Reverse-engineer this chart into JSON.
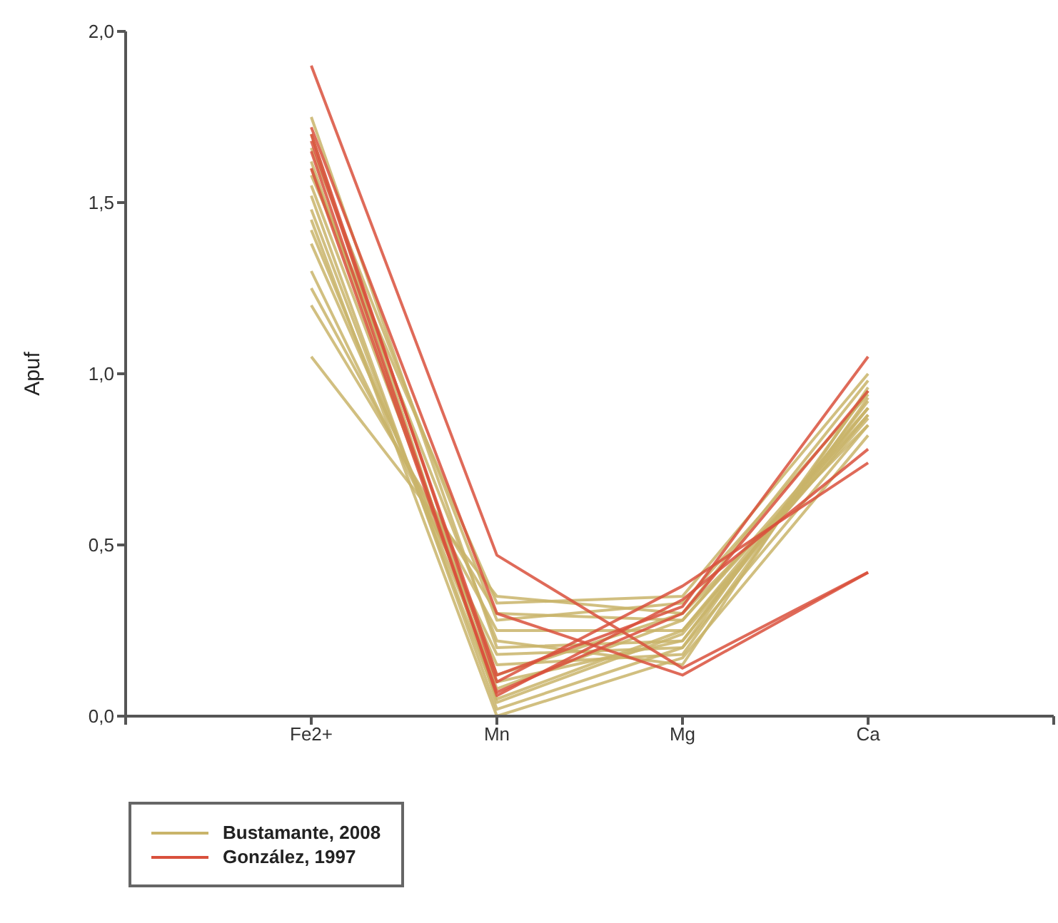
{
  "chart_data": {
    "type": "line",
    "ylabel": "Apuf",
    "categories": [
      null,
      "Fe2+",
      "Mn",
      "Mg",
      "Ca",
      null
    ],
    "ylim": [
      0,
      2
    ],
    "yticks": [
      {
        "value": 0,
        "label": "0,0"
      },
      {
        "value": 0.5,
        "label": "0,5"
      },
      {
        "value": 1,
        "label": "1,0"
      },
      {
        "value": 1.5,
        "label": "1,5"
      },
      {
        "value": 2,
        "label": "2,0"
      }
    ],
    "legend": "bottom left",
    "grid": false,
    "marker": "none",
    "line_style": "solid",
    "series": [
      {
        "name": "Bustamante, 2008",
        "color": "#c9b46a",
        "values": [
          null,
          1.75,
          0.2,
          0.22,
          0.92,
          null
        ]
      },
      {
        "color": "#c9b46a",
        "values": [
          null,
          1.05,
          0.35,
          0.3,
          0.85,
          null
        ]
      },
      {
        "color": "#c9b46a",
        "values": [
          null,
          1.2,
          0.3,
          0.28,
          0.88,
          null
        ]
      },
      {
        "color": "#c9b46a",
        "values": [
          null,
          1.25,
          0.25,
          0.25,
          0.9,
          null
        ]
      },
      {
        "color": "#c9b46a",
        "values": [
          null,
          1.3,
          0.18,
          0.2,
          0.95,
          null
        ]
      },
      {
        "color": "#c9b46a",
        "values": [
          null,
          1.38,
          0.15,
          0.18,
          0.93,
          null
        ]
      },
      {
        "color": "#c9b46a",
        "values": [
          null,
          1.42,
          0.1,
          0.22,
          0.9,
          null
        ]
      },
      {
        "color": "#c9b46a",
        "values": [
          null,
          1.48,
          0.05,
          0.25,
          0.87,
          null
        ]
      },
      {
        "color": "#c9b46a",
        "values": [
          null,
          1.52,
          0.02,
          0.2,
          0.85,
          null
        ]
      },
      {
        "color": "#c9b46a",
        "values": [
          null,
          1.55,
          0.12,
          0.3,
          0.98,
          null
        ]
      },
      {
        "color": "#c9b46a",
        "values": [
          null,
          1.6,
          0.22,
          0.15,
          0.96,
          null
        ]
      },
      {
        "color": "#c9b46a",
        "values": [
          null,
          1.62,
          0.08,
          0.28,
          0.9,
          null
        ]
      },
      {
        "color": "#c9b46a",
        "values": [
          null,
          1.66,
          0.28,
          0.33,
          0.94,
          null
        ]
      },
      {
        "color": "#c9b46a",
        "values": [
          null,
          1.7,
          0.04,
          0.24,
          0.88,
          null
        ]
      },
      {
        "color": "#c9b46a",
        "values": [
          null,
          1.58,
          0.33,
          0.35,
          1.0,
          null
        ]
      },
      {
        "color": "#c9b46a",
        "values": [
          null,
          1.45,
          0.0,
          0.17,
          0.82,
          null
        ]
      },
      {
        "name": "González, 1997",
        "color": "#d9503c",
        "values": [
          null,
          1.9,
          0.47,
          0.14,
          0.42,
          null
        ]
      },
      {
        "color": "#d9503c",
        "values": [
          null,
          1.72,
          0.3,
          0.12,
          0.42,
          null
        ]
      },
      {
        "color": "#d9503c",
        "values": [
          null,
          1.7,
          0.1,
          0.38,
          0.74,
          null
        ]
      },
      {
        "color": "#d9503c",
        "values": [
          null,
          1.65,
          0.06,
          0.34,
          0.78,
          null
        ]
      },
      {
        "color": "#d9503c",
        "values": [
          null,
          1.68,
          0.12,
          0.32,
          1.05,
          null
        ]
      },
      {
        "color": "#d9503c",
        "values": [
          null,
          1.6,
          0.07,
          0.3,
          0.95,
          null
        ]
      }
    ]
  }
}
